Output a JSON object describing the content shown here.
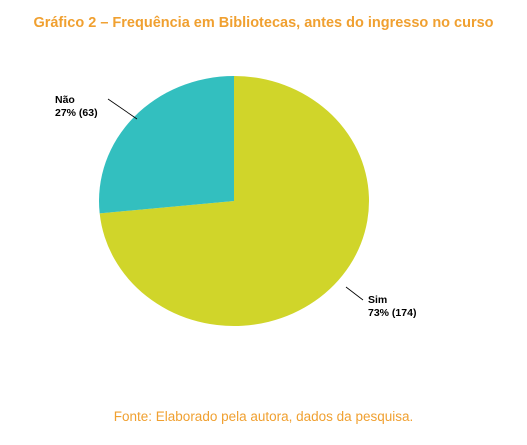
{
  "chart_data": {
    "type": "pie",
    "title": "Gráfico 2 – Frequência em Bibliotecas, antes do ingresso no curso",
    "slices": [
      {
        "name": "Sim",
        "percent_label": "73% (174)",
        "value": 174,
        "percent": 73,
        "color": "#d0d52a"
      },
      {
        "name": "Não",
        "percent_label": "27% (63)",
        "value": 63,
        "percent": 27,
        "color": "#33bfbf"
      }
    ],
    "legend": "none"
  },
  "source": "Fonte: Elaborado pela autora, dados da pesquisa."
}
